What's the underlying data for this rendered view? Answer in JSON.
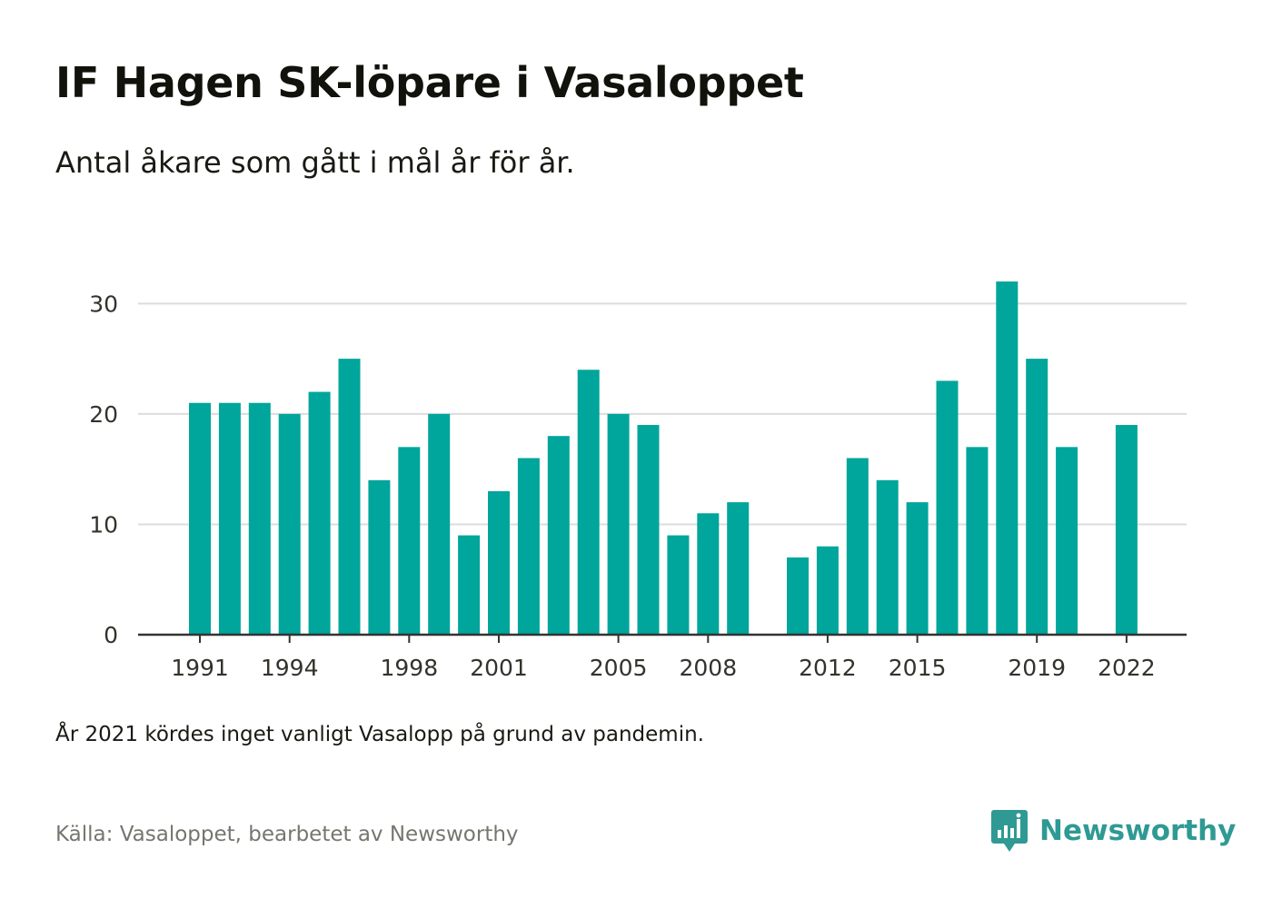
{
  "header": {
    "title": "IF Hagen SK-löpare i Vasaloppet",
    "subtitle": "Antal åkare som gått i mål år för år."
  },
  "footer": {
    "note": "År 2021 kördes inget vanligt Vasalopp på grund av pandemin.",
    "source": "Källa: Vasaloppet, bearbetet av Newsworthy",
    "brand_name": "Newsworthy"
  },
  "colors": {
    "bar": "#00a59b",
    "brand": "#2e9a93",
    "grid": "#dcdcdc",
    "axis": "#333333"
  },
  "chart_data": {
    "type": "bar",
    "title": "IF Hagen SK-löpare i Vasaloppet",
    "subtitle": "Antal åkare som gått i mål år för år.",
    "xlabel": "",
    "ylabel": "",
    "ylim": [
      0,
      32
    ],
    "yticks": [
      0,
      10,
      20,
      30
    ],
    "xtick_labels": [
      "1991",
      "1994",
      "1998",
      "2001",
      "2005",
      "2008",
      "2012",
      "2015",
      "2019",
      "2022"
    ],
    "grid": true,
    "categories": [
      "1991",
      "1992",
      "1993",
      "1994",
      "1995",
      "1996",
      "1997",
      "1998",
      "1999",
      "2000",
      "2001",
      "2002",
      "2003",
      "2004",
      "2005",
      "2006",
      "2007",
      "2008",
      "2009",
      "2010",
      "2011",
      "2012",
      "2013",
      "2014",
      "2015",
      "2016",
      "2017",
      "2018",
      "2019",
      "2020",
      "2021",
      "2022"
    ],
    "values": [
      21,
      21,
      21,
      20,
      22,
      25,
      14,
      17,
      20,
      9,
      13,
      16,
      18,
      24,
      20,
      19,
      9,
      11,
      12,
      0,
      7,
      8,
      16,
      14,
      12,
      23,
      17,
      32,
      25,
      17,
      0,
      19
    ]
  }
}
